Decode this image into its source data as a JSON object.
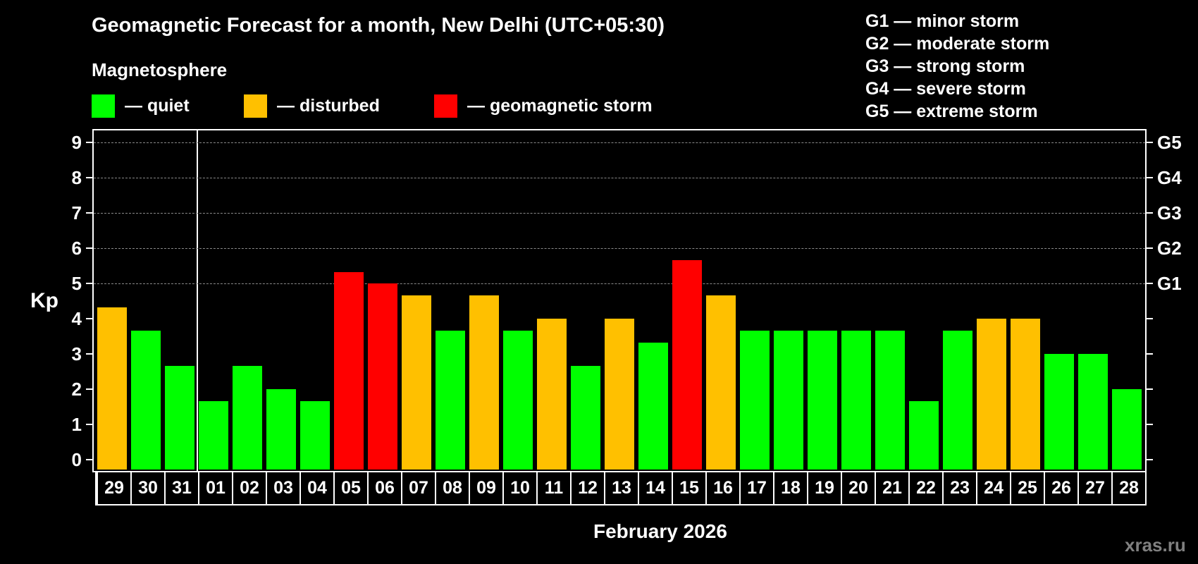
{
  "title": "Geomagnetic Forecast for a month, New Delhi (UTC+05:30)",
  "subtitle": "Magnetosphere",
  "legend": [
    {
      "label": "— quiet",
      "color": "#00ff00",
      "name": "quiet"
    },
    {
      "label": "— disturbed",
      "color": "#ffc000",
      "name": "disturbed"
    },
    {
      "label": "— geomagnetic storm",
      "color": "#ff0000",
      "name": "storm"
    }
  ],
  "gscale": [
    "G1 — minor storm",
    "G2 — moderate storm",
    "G3 — strong storm",
    "G4 — severe storm",
    "G5 — extreme storm"
  ],
  "ylabel": "Kp",
  "xlabel": "February 2026",
  "watermark": "xras.ru",
  "chart_data": {
    "type": "bar",
    "title": "Geomagnetic Forecast for a month, New Delhi (UTC+05:30)",
    "xlabel": "February 2026",
    "ylabel": "Kp",
    "ylim": [
      0,
      9
    ],
    "yticks": [
      0,
      1,
      2,
      3,
      4,
      5,
      6,
      7,
      8,
      9
    ],
    "right_axis_labels": {
      "5": "G1",
      "6": "G2",
      "7": "G3",
      "8": "G4",
      "9": "G5"
    },
    "grid": "dashed horizontal at 5-9",
    "categories": [
      "29",
      "30",
      "31",
      "01",
      "02",
      "03",
      "04",
      "05",
      "06",
      "07",
      "08",
      "09",
      "10",
      "11",
      "12",
      "13",
      "14",
      "15",
      "16",
      "17",
      "18",
      "19",
      "20",
      "21",
      "22",
      "23",
      "24",
      "25",
      "26",
      "27",
      "28"
    ],
    "values": [
      4.33,
      3.67,
      2.67,
      1.67,
      2.67,
      2.0,
      1.67,
      5.33,
      5.0,
      4.67,
      3.67,
      4.67,
      3.67,
      4.0,
      2.67,
      4.0,
      3.33,
      5.67,
      4.67,
      3.67,
      3.67,
      3.67,
      3.67,
      3.67,
      1.67,
      3.67,
      4.0,
      4.0,
      3.0,
      3.0,
      2.0
    ],
    "status": [
      "disturbed",
      "quiet",
      "quiet",
      "quiet",
      "quiet",
      "quiet",
      "quiet",
      "storm",
      "storm",
      "disturbed",
      "quiet",
      "disturbed",
      "quiet",
      "disturbed",
      "quiet",
      "disturbed",
      "quiet",
      "storm",
      "disturbed",
      "quiet",
      "quiet",
      "quiet",
      "quiet",
      "quiet",
      "quiet",
      "quiet",
      "disturbed",
      "disturbed",
      "quiet",
      "quiet",
      "quiet"
    ],
    "colors": {
      "quiet": "#00ff00",
      "disturbed": "#ffc000",
      "storm": "#ff0000"
    },
    "month_separator_after": "31"
  }
}
